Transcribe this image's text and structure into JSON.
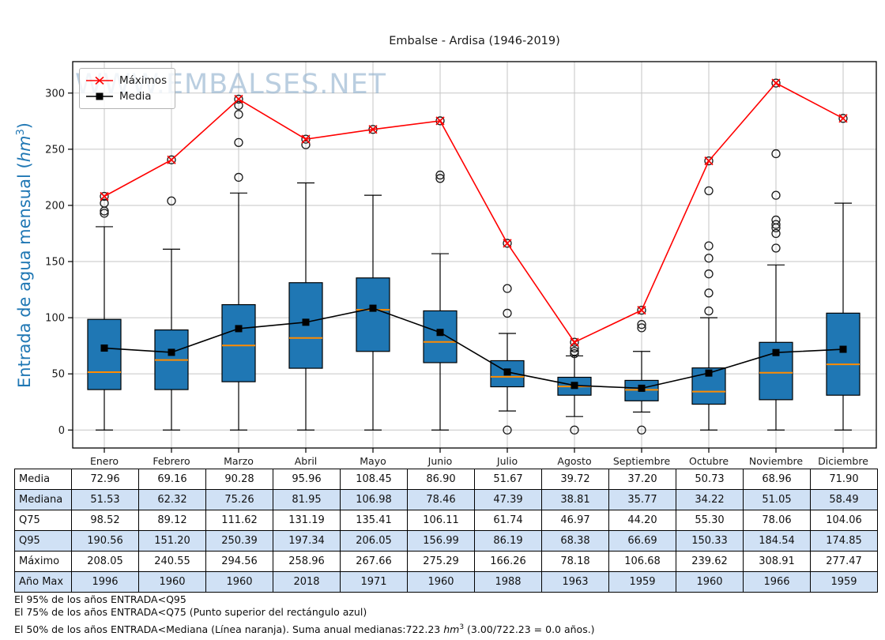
{
  "title": "Embalse - Ardisa (1946-2019)",
  "watermark": "WWW.EMBALSES.NET",
  "colors": {
    "box_fill": "#1f77b4",
    "median_line": "#ff8c00",
    "max_line": "#ff0000",
    "media_line": "#000000",
    "ylabel_blue": "#1f77b4",
    "table_stripe": "#d0e1f5",
    "watermark_blue": "#8fb0cd",
    "grid": "#c6c6c6"
  },
  "chart_data": {
    "type": "boxplot",
    "title": "Embalse - Ardisa (1946-2019)",
    "ylabel": "Entrada de agua mensual (hm³)",
    "ylabel_parts": {
      "prefix": "Entrada de agua mensual (",
      "unit": "hm",
      "sup": "3",
      "suffix": ")"
    },
    "xlabel": "",
    "grid": true,
    "legend_position": "upper-left",
    "categories": [
      "Enero",
      "Febrero",
      "Marzo",
      "Abril",
      "Mayo",
      "Junio",
      "Julio",
      "Agosto",
      "Septiembre",
      "Octubre",
      "Noviembre",
      "Diciembre"
    ],
    "yticks": [
      0,
      50,
      100,
      150,
      200,
      250,
      300
    ],
    "ylim": [
      -16,
      328
    ],
    "series": [
      {
        "name": "Máximos",
        "type": "line",
        "marker": "x",
        "color": "#ff0000",
        "values": [
          208.05,
          240.55,
          294.56,
          258.96,
          267.66,
          275.29,
          166.26,
          78.18,
          106.68,
          239.62,
          308.91,
          277.47
        ]
      },
      {
        "name": "Media",
        "type": "line",
        "marker": "square",
        "color": "#000000",
        "values": [
          72.96,
          69.16,
          90.28,
          95.96,
          108.45,
          86.9,
          51.67,
          39.72,
          37.2,
          50.73,
          68.96,
          71.9
        ]
      }
    ],
    "boxes": {
      "median": [
        51.53,
        62.32,
        75.26,
        81.95,
        106.98,
        78.46,
        47.39,
        38.81,
        35.77,
        34.22,
        51.05,
        58.49
      ],
      "q3": [
        98.52,
        89.12,
        111.62,
        131.19,
        135.41,
        106.11,
        61.74,
        46.97,
        44.2,
        55.3,
        78.06,
        104.06
      ],
      "q1": [
        36,
        36,
        43,
        55,
        70,
        60,
        38.5,
        31,
        26,
        23,
        27,
        31
      ],
      "whisker_low": [
        0,
        0,
        0,
        0,
        0,
        0,
        17,
        12,
        16,
        0,
        0,
        0
      ],
      "whisker_high": [
        181,
        161,
        211,
        220,
        209,
        157,
        86,
        66,
        70,
        100,
        147,
        202
      ],
      "outliers": [
        [
          193,
          195,
          202,
          208.05
        ],
        [
          204,
          240.55
        ],
        [
          225,
          256,
          281,
          289,
          294.56
        ],
        [
          254,
          258.96
        ],
        [
          267.66
        ],
        [
          224,
          227,
          275.29
        ],
        [
          0,
          104,
          126,
          166.26
        ],
        [
          0,
          68,
          70,
          73,
          78.18
        ],
        [
          0,
          91,
          94,
          106.68
        ],
        [
          106,
          122,
          139,
          153,
          164,
          213,
          239.62
        ],
        [
          162,
          175,
          180,
          183,
          187,
          209,
          246,
          308.91
        ],
        [
          277.47
        ]
      ]
    }
  },
  "table": {
    "row_labels": [
      "Media",
      "Mediana",
      "Q75",
      "Q95",
      "Máximo",
      "Año Max"
    ],
    "rows": [
      [
        "72.96",
        "69.16",
        "90.28",
        "95.96",
        "108.45",
        "86.90",
        "51.67",
        "39.72",
        "37.20",
        "50.73",
        "68.96",
        "71.90"
      ],
      [
        "51.53",
        "62.32",
        "75.26",
        "81.95",
        "106.98",
        "78.46",
        "47.39",
        "38.81",
        "35.77",
        "34.22",
        "51.05",
        "58.49"
      ],
      [
        "98.52",
        "89.12",
        "111.62",
        "131.19",
        "135.41",
        "106.11",
        "61.74",
        "46.97",
        "44.20",
        "55.30",
        "78.06",
        "104.06"
      ],
      [
        "190.56",
        "151.20",
        "250.39",
        "197.34",
        "206.05",
        "156.99",
        "86.19",
        "68.38",
        "66.69",
        "150.33",
        "184.54",
        "174.85"
      ],
      [
        "208.05",
        "240.55",
        "294.56",
        "258.96",
        "267.66",
        "275.29",
        "166.26",
        "78.18",
        "106.68",
        "239.62",
        "308.91",
        "277.47"
      ],
      [
        "1996",
        "1960",
        "1960",
        "2018",
        "1971",
        "1960",
        "1988",
        "1963",
        "1959",
        "1960",
        "1966",
        "1959"
      ]
    ]
  },
  "footer": {
    "line1": "El 95% de los años ENTRADA<Q95",
    "line2": "El 75% de los años ENTRADA<Q75 (Punto superior del rectángulo azul)",
    "line3_pre": "El 50% de los años ENTRADA<Mediana (Línea naranja). Suma anual medianas:722.23 ",
    "line3_unit": "hm",
    "line3_sup": "3",
    "line3_post": " (3.00/722.23 = 0.0 años.)"
  }
}
